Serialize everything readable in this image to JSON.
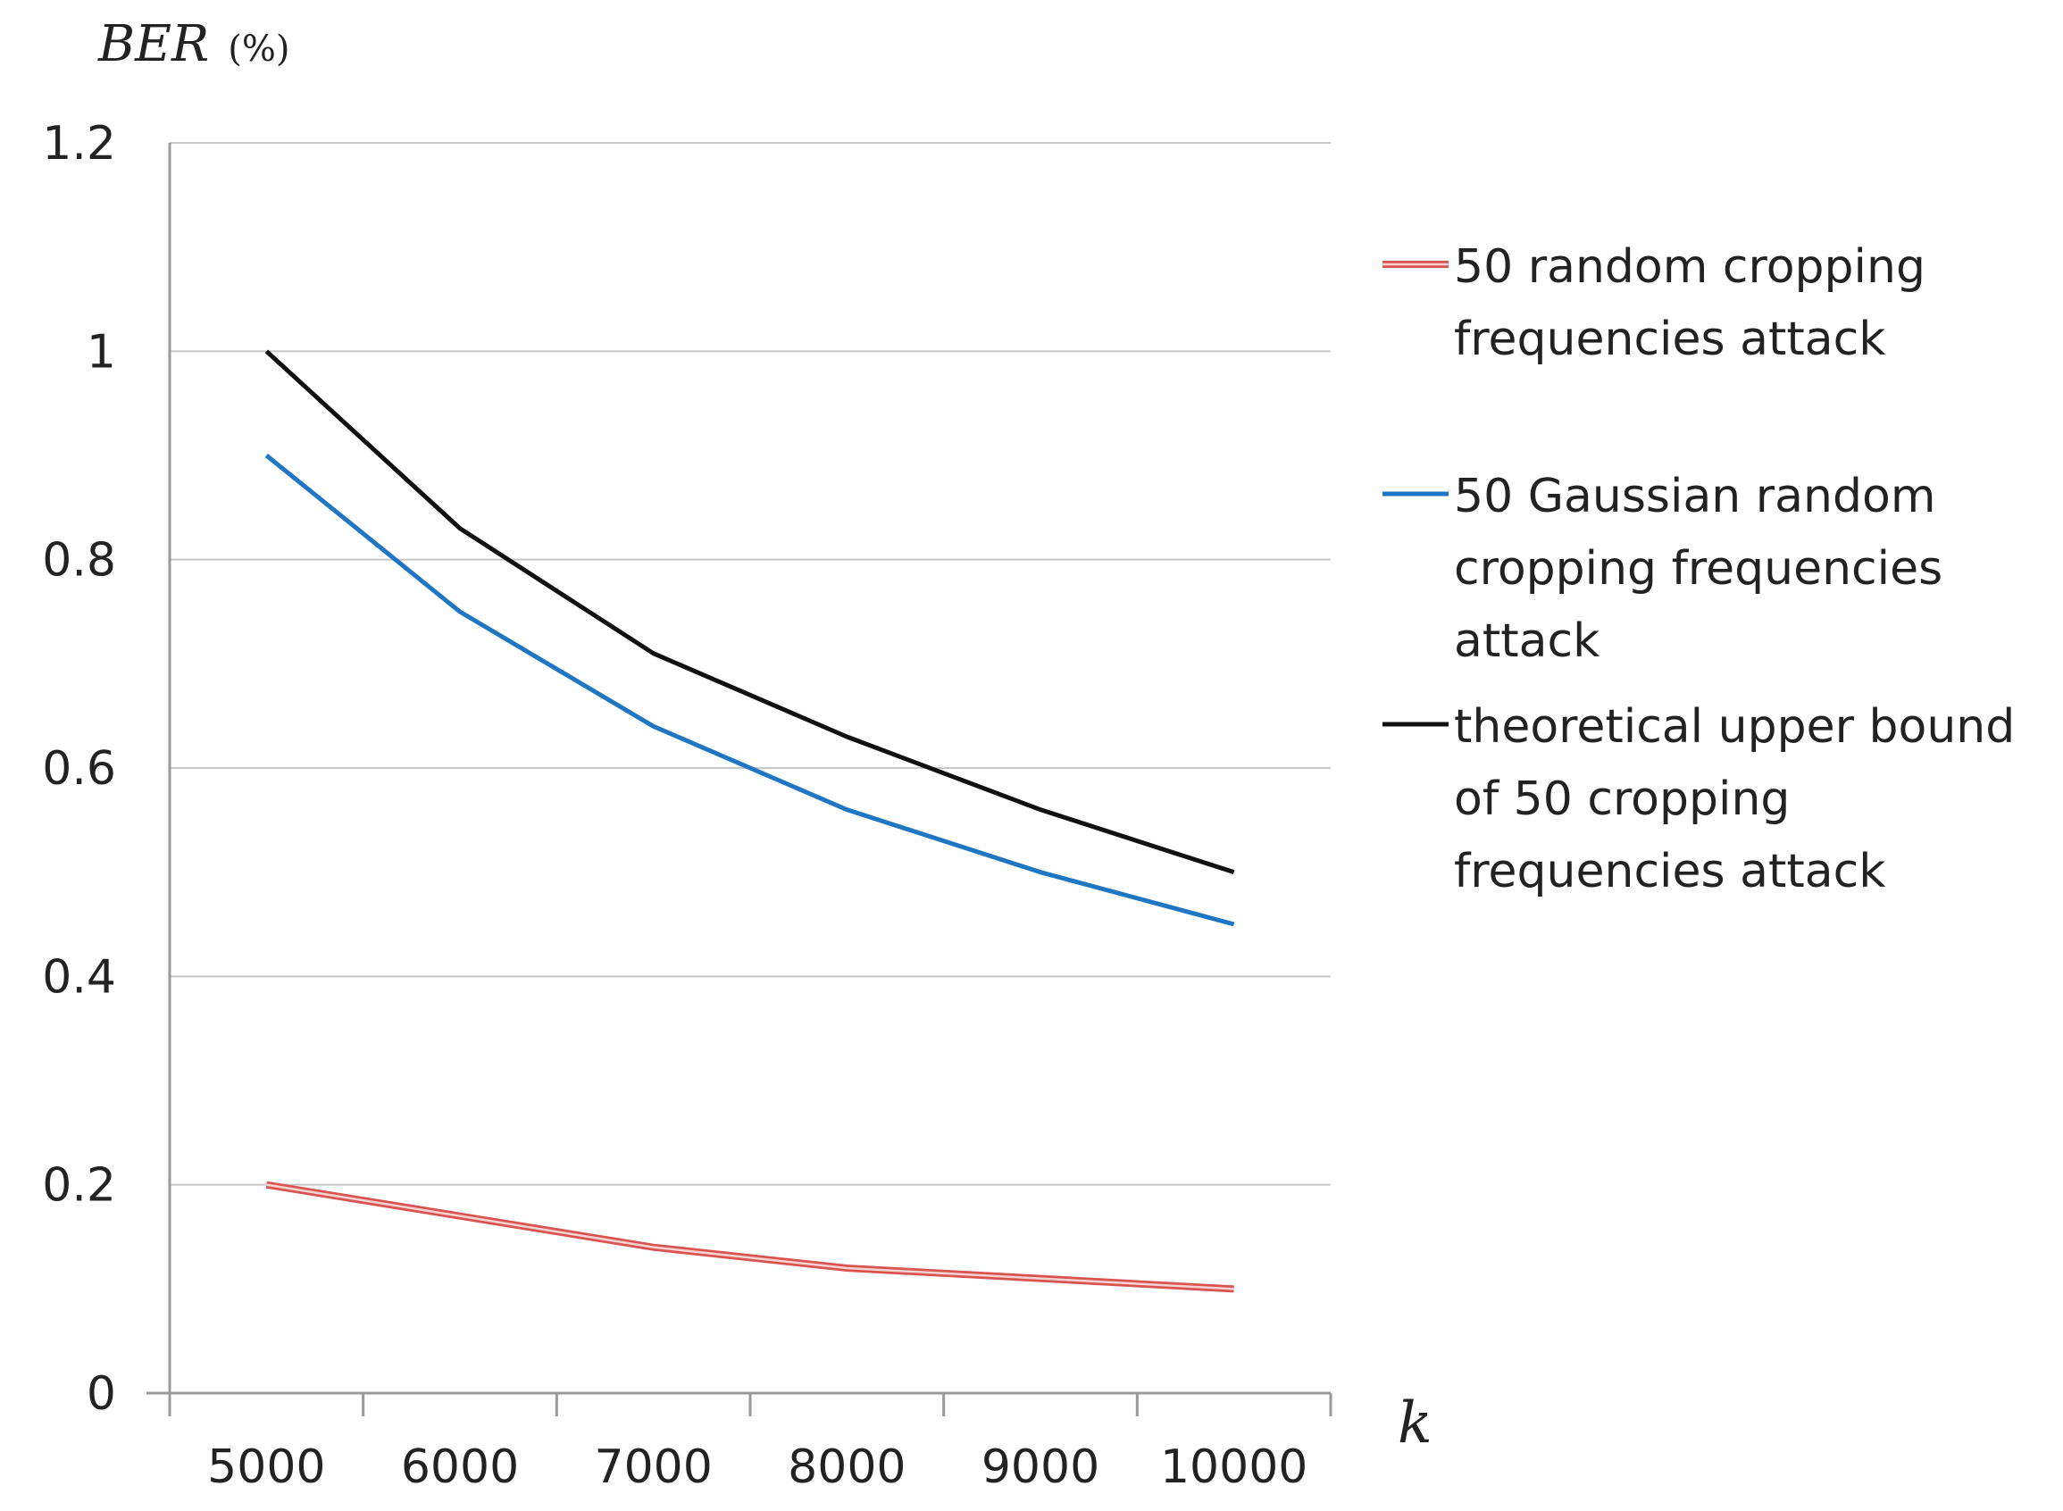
{
  "chart_data": {
    "type": "line",
    "title": "",
    "ylabel": "BER",
    "ylabel_unit": "(%)",
    "xlabel": "k",
    "x": [
      5000,
      6000,
      7000,
      8000,
      9000,
      10000
    ],
    "x_tick_labels": [
      "5000",
      "6000",
      "7000",
      "8000",
      "9000",
      "10000"
    ],
    "ylim": [
      0,
      1.2
    ],
    "y_ticks": [
      0,
      0.2,
      0.4,
      0.6,
      0.8,
      1,
      1.2
    ],
    "y_tick_labels": [
      "0",
      "0.2",
      "0.4",
      "0.6",
      "0.8",
      "1",
      "1.2"
    ],
    "grid": true,
    "legend_position": "right",
    "series": [
      {
        "name": "50 random cropping frequencies attack",
        "legend_lines": [
          "50 random cropping",
          "frequencies attack"
        ],
        "color": "#d9534f",
        "values": [
          0.2,
          0.17,
          0.14,
          0.12,
          0.11,
          0.1
        ]
      },
      {
        "name": "50 Gaussian random cropping frequencies attack",
        "legend_lines": [
          "50 Gaussian random",
          "cropping frequencies",
          "attack"
        ],
        "color": "#1f77c4",
        "values": [
          0.9,
          0.75,
          0.64,
          0.56,
          0.5,
          0.45
        ]
      },
      {
        "name": "theoretical upper bound of 50 cropping frequencies attack",
        "legend_lines": [
          "theoretical upper bound",
          "of 50 cropping",
          "frequencies attack"
        ],
        "color": "#111111",
        "values": [
          1.0,
          0.83,
          0.71,
          0.63,
          0.56,
          0.5
        ]
      }
    ]
  }
}
